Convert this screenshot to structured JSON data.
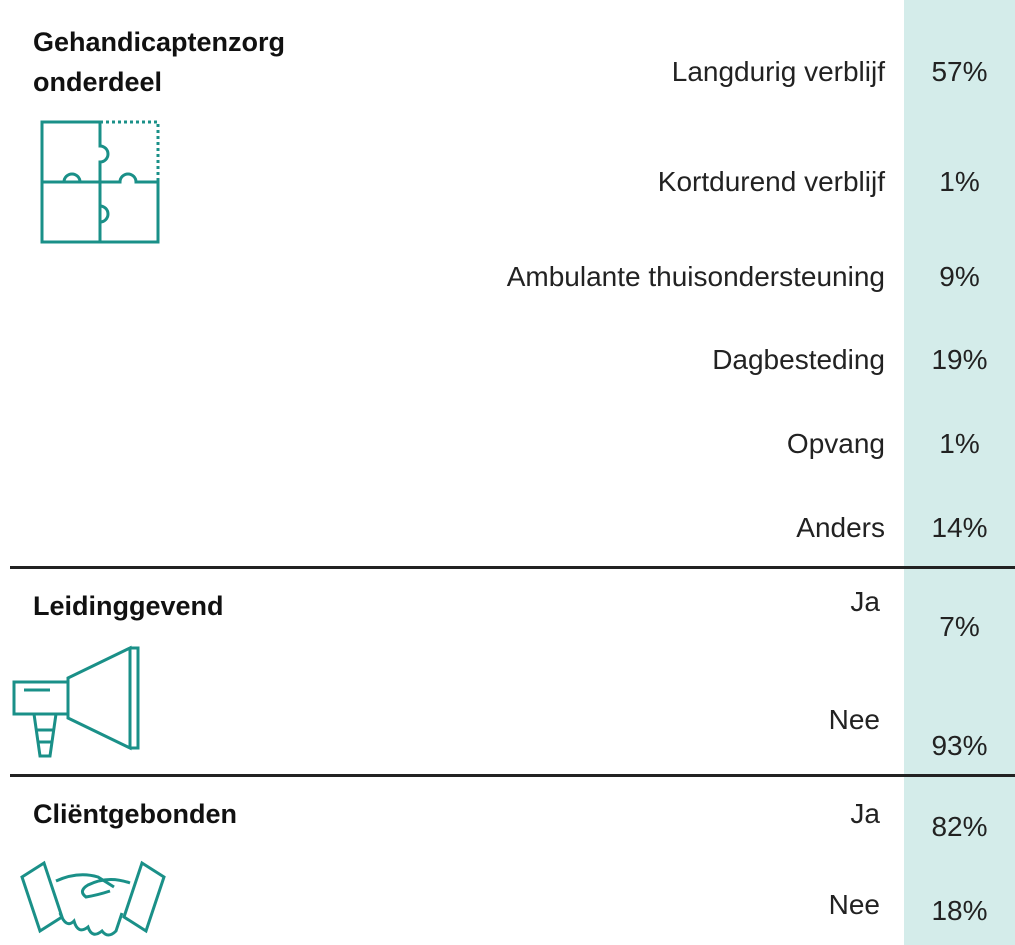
{
  "sections": [
    {
      "title": [
        "Gehandicaptenzorg",
        "onderdeel"
      ],
      "rows": [
        {
          "label": "Langdurig verblijf",
          "value": "57%"
        },
        {
          "label": "Kortdurend verblijf",
          "value": "1%"
        },
        {
          "label": "Ambulante thuisondersteuning",
          "value": "9%"
        },
        {
          "label": "Dagbesteding",
          "value": "19%"
        },
        {
          "label": "Opvang",
          "value": "1%"
        },
        {
          "label": "Anders",
          "value": "14%"
        }
      ]
    },
    {
      "title": [
        "Leidinggevend"
      ],
      "rows": [
        {
          "label": "Ja",
          "value": "7%"
        },
        {
          "label": "Nee",
          "value": "93%"
        }
      ]
    },
    {
      "title": [
        "Cliëntgebonden"
      ],
      "rows": [
        {
          "label": "Ja",
          "value": "82%"
        },
        {
          "label": "Nee",
          "value": "18%"
        }
      ]
    }
  ]
}
